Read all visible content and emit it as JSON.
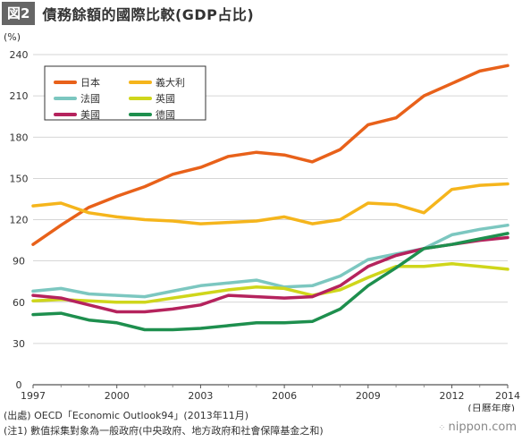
{
  "header": {
    "badge": "図2",
    "title": "債務餘額的國際比較(GDP占比)"
  },
  "notes": {
    "source": "(出處) OECD「Economic Outlook94」(2013年11月)",
    "note1": "(注1) 數值採集對象為一般政府(中央政府、地方政府和社會保障基金之和)"
  },
  "brand": "nippon.com",
  "chart_data": {
    "type": "line",
    "ylabel": "(%)",
    "xlabel": "(日曆年度)",
    "xlim": [
      1997,
      2014
    ],
    "ylim": [
      0,
      240
    ],
    "yticks": [
      0,
      30,
      60,
      90,
      120,
      150,
      180,
      210,
      240
    ],
    "xticks": [
      1997,
      2000,
      2003,
      2006,
      2009,
      2012,
      2014
    ],
    "grid": true,
    "legend_position": "top-left",
    "x": [
      1997,
      1998,
      1999,
      2000,
      2001,
      2002,
      2003,
      2004,
      2005,
      2006,
      2007,
      2008,
      2009,
      2010,
      2011,
      2012,
      2013,
      2014
    ],
    "series": [
      {
        "name": "日本",
        "color": "#e8611a",
        "values": [
          102,
          116,
          129,
          137,
          144,
          153,
          158,
          166,
          169,
          167,
          162,
          171,
          189,
          194,
          210,
          219,
          228,
          232
        ]
      },
      {
        "name": "義大利",
        "color": "#f5b51c",
        "values": [
          130,
          132,
          125,
          122,
          120,
          119,
          117,
          118,
          119,
          122,
          117,
          120,
          132,
          131,
          125,
          142,
          145,
          146
        ]
      },
      {
        "name": "法國",
        "color": "#7cc7c0",
        "values": [
          68,
          70,
          66,
          65,
          64,
          68,
          72,
          74,
          76,
          71,
          72,
          79,
          91,
          95,
          99,
          109,
          113,
          116
        ]
      },
      {
        "name": "英國",
        "color": "#cfd61b",
        "values": [
          61,
          62,
          61,
          60,
          60,
          63,
          66,
          69,
          71,
          70,
          65,
          69,
          78,
          86,
          86,
          88,
          86,
          84
        ]
      },
      {
        "name": "美國",
        "color": "#b5235d",
        "values": [
          65,
          63,
          58,
          53,
          53,
          55,
          58,
          65,
          64,
          63,
          64,
          72,
          86,
          94,
          99,
          102,
          105,
          107
        ]
      },
      {
        "name": "德國",
        "color": "#1e8f4e",
        "values": [
          51,
          52,
          47,
          45,
          40,
          40,
          41,
          43,
          45,
          45,
          46,
          55,
          72,
          85,
          99,
          102,
          106,
          110
        ]
      }
    ]
  }
}
